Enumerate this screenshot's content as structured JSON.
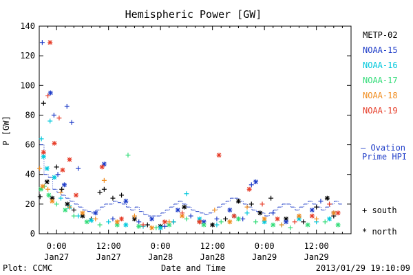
{
  "chart_data": {
    "type": "scatter",
    "title": "Hemispheric Power [GW]",
    "ylabel": "P [GW]",
    "xlabel": "Date and Time",
    "ylim": [
      0,
      140
    ],
    "yticks": [
      0,
      20,
      40,
      60,
      80,
      100,
      120,
      140
    ],
    "xlim_hours": [
      -4,
      68
    ],
    "xticks": [
      {
        "hour": 0,
        "time": "0:00",
        "date": "Jan27"
      },
      {
        "hour": 12,
        "time": "12:00",
        "date": "Jan27"
      },
      {
        "hour": 24,
        "time": "0:00",
        "date": "Jan28"
      },
      {
        "hour": 36,
        "time": "12:00",
        "date": "Jan28"
      },
      {
        "hour": 48,
        "time": "0:00",
        "date": "Jan29"
      },
      {
        "hour": 60,
        "time": "12:00",
        "date": "Jan29"
      }
    ],
    "footer_left": "Plot: CCMC",
    "footer_right": "2013/01/29 19:10:09",
    "legend": {
      "series_colors": [
        "#000000",
        "#1e3cc8",
        "#00c8dc",
        "#32dc78",
        "#f08c1e",
        "#e63c28"
      ],
      "ovation_line1": "— Ovation",
      "ovation_line2": "Prime HPI",
      "ovation_color": "#1e3cc8",
      "south_label": "+ south",
      "north_label": "* north"
    },
    "series": [
      {
        "name": "METP-02",
        "color": "#000000",
        "points": [
          {
            "x": -3.8,
            "y": 25,
            "m": "+"
          },
          {
            "x": -3.0,
            "y": 88,
            "m": "+"
          },
          {
            "x": -2.2,
            "y": 35,
            "m": "*"
          },
          {
            "x": -1.0,
            "y": 24,
            "m": "*"
          },
          {
            "x": 0.0,
            "y": 45,
            "m": "+"
          },
          {
            "x": 1.2,
            "y": 30,
            "m": "+"
          },
          {
            "x": 2.5,
            "y": 20,
            "m": "*"
          },
          {
            "x": 4.0,
            "y": 16,
            "m": "+"
          },
          {
            "x": 6.0,
            "y": 12,
            "m": "*"
          },
          {
            "x": 8.0,
            "y": 10,
            "m": "+"
          },
          {
            "x": 10.0,
            "y": 28,
            "m": "+"
          },
          {
            "x": 11.0,
            "y": 30,
            "m": "+"
          },
          {
            "x": 13.0,
            "y": 24,
            "m": "+"
          },
          {
            "x": 15.0,
            "y": 26,
            "m": "+"
          },
          {
            "x": 18.0,
            "y": 10,
            "m": "*"
          },
          {
            "x": 21.0,
            "y": 6,
            "m": "+"
          },
          {
            "x": 24.0,
            "y": 5,
            "m": "*"
          },
          {
            "x": 27.0,
            "y": 8,
            "m": "+"
          },
          {
            "x": 29.5,
            "y": 18,
            "m": "*"
          },
          {
            "x": 33.0,
            "y": 8,
            "m": "+"
          },
          {
            "x": 36.0,
            "y": 6,
            "m": "*"
          },
          {
            "x": 39.0,
            "y": 10,
            "m": "+"
          },
          {
            "x": 42.0,
            "y": 22,
            "m": "*"
          },
          {
            "x": 45.0,
            "y": 20,
            "m": "+"
          },
          {
            "x": 47.0,
            "y": 14,
            "m": "*"
          },
          {
            "x": 49.5,
            "y": 24,
            "m": "+"
          },
          {
            "x": 53.0,
            "y": 10,
            "m": "*"
          },
          {
            "x": 57.0,
            "y": 8,
            "m": "+"
          },
          {
            "x": 60.0,
            "y": 18,
            "m": "+"
          },
          {
            "x": 62.5,
            "y": 24,
            "m": "*"
          },
          {
            "x": 64.0,
            "y": 12,
            "m": "+"
          }
        ]
      },
      {
        "name": "NOAA-15",
        "color": "#1e3cc8",
        "points": [
          {
            "x": -3.3,
            "y": 129,
            "m": "+"
          },
          {
            "x": -1.4,
            "y": 95,
            "m": "*"
          },
          {
            "x": -0.6,
            "y": 80,
            "m": "+"
          },
          {
            "x": 0.3,
            "y": 40,
            "m": "+"
          },
          {
            "x": 1.8,
            "y": 33,
            "m": "*"
          },
          {
            "x": 2.4,
            "y": 86,
            "m": "+"
          },
          {
            "x": 3.5,
            "y": 75,
            "m": "+"
          },
          {
            "x": 5.0,
            "y": 44,
            "m": "+"
          },
          {
            "x": 9.0,
            "y": 14,
            "m": "*"
          },
          {
            "x": 11.0,
            "y": 47,
            "m": "*"
          },
          {
            "x": 13.0,
            "y": 10,
            "m": "+"
          },
          {
            "x": 16.0,
            "y": 22,
            "m": "*"
          },
          {
            "x": 19.0,
            "y": 8,
            "m": "+"
          },
          {
            "x": 22.0,
            "y": 10,
            "m": "*"
          },
          {
            "x": 25.0,
            "y": 5,
            "m": "+"
          },
          {
            "x": 28.0,
            "y": 16,
            "m": "*"
          },
          {
            "x": 31.0,
            "y": 12,
            "m": "+"
          },
          {
            "x": 34.0,
            "y": 8,
            "m": "*"
          },
          {
            "x": 37.0,
            "y": 10,
            "m": "+"
          },
          {
            "x": 40.0,
            "y": 16,
            "m": "*"
          },
          {
            "x": 43.0,
            "y": 10,
            "m": "+"
          },
          {
            "x": 45.0,
            "y": 33,
            "m": "+"
          },
          {
            "x": 46.0,
            "y": 35,
            "m": "*"
          },
          {
            "x": 50.0,
            "y": 14,
            "m": "+"
          },
          {
            "x": 53.0,
            "y": 8,
            "m": "*"
          },
          {
            "x": 56.0,
            "y": 12,
            "m": "+"
          },
          {
            "x": 59.0,
            "y": 16,
            "m": "*"
          },
          {
            "x": 61.0,
            "y": 22,
            "m": "+"
          },
          {
            "x": 64.0,
            "y": 14,
            "m": "*"
          }
        ]
      },
      {
        "name": "NOAA-16",
        "color": "#00c8dc",
        "points": [
          {
            "x": -3.5,
            "y": 64,
            "m": "+"
          },
          {
            "x": -3.0,
            "y": 52,
            "m": "*"
          },
          {
            "x": -2.2,
            "y": 44,
            "m": "*"
          },
          {
            "x": -1.5,
            "y": 76,
            "m": "+"
          },
          {
            "x": -0.5,
            "y": 38,
            "m": "*"
          },
          {
            "x": 1.0,
            "y": 24,
            "m": "+"
          },
          {
            "x": 3.0,
            "y": 18,
            "m": "*"
          },
          {
            "x": 5.0,
            "y": 12,
            "m": "+"
          },
          {
            "x": 8.0,
            "y": 9,
            "m": "*"
          },
          {
            "x": 12.0,
            "y": 8,
            "m": "+"
          },
          {
            "x": 16.0,
            "y": 6,
            "m": "*"
          },
          {
            "x": 20.0,
            "y": 5,
            "m": "+"
          },
          {
            "x": 24.0,
            "y": 4,
            "m": "*"
          },
          {
            "x": 27.0,
            "y": 8,
            "m": "+"
          },
          {
            "x": 30.0,
            "y": 27,
            "m": "+"
          },
          {
            "x": 33.0,
            "y": 10,
            "m": "*"
          },
          {
            "x": 37.0,
            "y": 6,
            "m": "+"
          },
          {
            "x": 41.0,
            "y": 12,
            "m": "*"
          },
          {
            "x": 44.0,
            "y": 14,
            "m": "+"
          },
          {
            "x": 48.0,
            "y": 8,
            "m": "*"
          },
          {
            "x": 52.0,
            "y": 6,
            "m": "+"
          },
          {
            "x": 56.0,
            "y": 10,
            "m": "*"
          },
          {
            "x": 60.0,
            "y": 8,
            "m": "+"
          },
          {
            "x": 63.0,
            "y": 10,
            "m": "*"
          }
        ]
      },
      {
        "name": "NOAA-17",
        "color": "#32dc78",
        "points": [
          {
            "x": -3.6,
            "y": 30,
            "m": "*"
          },
          {
            "x": -2.8,
            "y": 32,
            "m": "+"
          },
          {
            "x": -1.8,
            "y": 26,
            "m": "*"
          },
          {
            "x": 0.0,
            "y": 20,
            "m": "+"
          },
          {
            "x": 2.0,
            "y": 16,
            "m": "*"
          },
          {
            "x": 4.0,
            "y": 12,
            "m": "+"
          },
          {
            "x": 7.0,
            "y": 8,
            "m": "*"
          },
          {
            "x": 10.0,
            "y": 6,
            "m": "+"
          },
          {
            "x": 14.0,
            "y": 6,
            "m": "*"
          },
          {
            "x": 16.5,
            "y": 53,
            "m": "+"
          },
          {
            "x": 19.0,
            "y": 5,
            "m": "*"
          },
          {
            "x": 23.0,
            "y": 4,
            "m": "+"
          },
          {
            "x": 26.0,
            "y": 6,
            "m": "*"
          },
          {
            "x": 30.0,
            "y": 10,
            "m": "+"
          },
          {
            "x": 34.0,
            "y": 6,
            "m": "*"
          },
          {
            "x": 38.0,
            "y": 8,
            "m": "+"
          },
          {
            "x": 42.0,
            "y": 10,
            "m": "*"
          },
          {
            "x": 46.0,
            "y": 8,
            "m": "+"
          },
          {
            "x": 50.0,
            "y": 6,
            "m": "*"
          },
          {
            "x": 54.0,
            "y": 4,
            "m": "+"
          },
          {
            "x": 58.0,
            "y": 6,
            "m": "*"
          },
          {
            "x": 62.0,
            "y": 8,
            "m": "+"
          },
          {
            "x": 65.0,
            "y": 6,
            "m": "*"
          }
        ]
      },
      {
        "name": "NOAA-18",
        "color": "#f08c1e",
        "points": [
          {
            "x": -3.9,
            "y": 44,
            "m": "+"
          },
          {
            "x": -3.2,
            "y": 32,
            "m": "*"
          },
          {
            "x": -2.0,
            "y": 30,
            "m": "+"
          },
          {
            "x": -1.0,
            "y": 22,
            "m": "*"
          },
          {
            "x": 1.0,
            "y": 28,
            "m": "+"
          },
          {
            "x": 3.0,
            "y": 18,
            "m": "+"
          },
          {
            "x": 6.0,
            "y": 14,
            "m": "*"
          },
          {
            "x": 9.0,
            "y": 10,
            "m": "+"
          },
          {
            "x": 11.0,
            "y": 36,
            "m": "+"
          },
          {
            "x": 14.0,
            "y": 8,
            "m": "*"
          },
          {
            "x": 18.0,
            "y": 12,
            "m": "+"
          },
          {
            "x": 22.0,
            "y": 4,
            "m": "*"
          },
          {
            "x": 26.0,
            "y": 8,
            "m": "+"
          },
          {
            "x": 29.0,
            "y": 12,
            "m": "*"
          },
          {
            "x": 33.0,
            "y": 8,
            "m": "+"
          },
          {
            "x": 36.5,
            "y": 16,
            "m": "+"
          },
          {
            "x": 40.0,
            "y": 8,
            "m": "*"
          },
          {
            "x": 44.0,
            "y": 18,
            "m": "+"
          },
          {
            "x": 48.0,
            "y": 10,
            "m": "*"
          },
          {
            "x": 52.0,
            "y": 6,
            "m": "+"
          },
          {
            "x": 56.0,
            "y": 12,
            "m": "*"
          },
          {
            "x": 60.0,
            "y": 10,
            "m": "+"
          },
          {
            "x": 64.0,
            "y": 14,
            "m": "*"
          }
        ]
      },
      {
        "name": "NOAA-19",
        "color": "#e63c28",
        "points": [
          {
            "x": -3.0,
            "y": 55,
            "m": "*"
          },
          {
            "x": -2.0,
            "y": 93,
            "m": "+"
          },
          {
            "x": -1.5,
            "y": 129,
            "m": "*"
          },
          {
            "x": -0.5,
            "y": 61,
            "m": "*"
          },
          {
            "x": 0.6,
            "y": 78,
            "m": "+"
          },
          {
            "x": 1.4,
            "y": 43,
            "m": "*"
          },
          {
            "x": 3.0,
            "y": 50,
            "m": "*"
          },
          {
            "x": 4.5,
            "y": 26,
            "m": "*"
          },
          {
            "x": 10.5,
            "y": 45,
            "m": "*"
          },
          {
            "x": 15.0,
            "y": 10,
            "m": "*"
          },
          {
            "x": 20.0,
            "y": 6,
            "m": "+"
          },
          {
            "x": 25.0,
            "y": 8,
            "m": "*"
          },
          {
            "x": 29.0,
            "y": 14,
            "m": "+"
          },
          {
            "x": 33.0,
            "y": 8,
            "m": "*"
          },
          {
            "x": 37.5,
            "y": 53,
            "m": "*"
          },
          {
            "x": 41.0,
            "y": 12,
            "m": "*"
          },
          {
            "x": 44.5,
            "y": 30,
            "m": "*"
          },
          {
            "x": 47.5,
            "y": 20,
            "m": "+"
          },
          {
            "x": 51.0,
            "y": 10,
            "m": "*"
          },
          {
            "x": 55.0,
            "y": 8,
            "m": "+"
          },
          {
            "x": 59.0,
            "y": 12,
            "m": "*"
          },
          {
            "x": 63.0,
            "y": 20,
            "m": "+"
          },
          {
            "x": 65.0,
            "y": 14,
            "m": "*"
          }
        ]
      }
    ],
    "ovation_hpi": {
      "name": "Ovation Prime HPI",
      "color": "#1e3cc8",
      "x": [
        -3.5,
        -2.5,
        -1.5,
        -0.5,
        0.5,
        1.5,
        2.5,
        3.5,
        4.5,
        5.5,
        6.5,
        7.5,
        8.5,
        9.5,
        10.5,
        11.5,
        12.5,
        13.5,
        14.5,
        15.5,
        16.5,
        17.5,
        18.5,
        19.5,
        20.5,
        21.5,
        22.5,
        23.5,
        24.5,
        25.5,
        26.5,
        27.5,
        28.5,
        29.5,
        30.5,
        31.5,
        32.5,
        33.5,
        34.5,
        35.5,
        36.5,
        37.5,
        38.5,
        39.5,
        40.5,
        41.5,
        42.5,
        43.5,
        44.5,
        45.5,
        46.5,
        47.5,
        48.5,
        49.5,
        50.5,
        51.5,
        52.5,
        53.5,
        54.5,
        55.5,
        56.5,
        57.5,
        58.5,
        59.5,
        60.5,
        61.5,
        62.5,
        63.5,
        64.5,
        65.5
      ],
      "y": [
        60,
        40,
        38,
        30,
        28,
        26,
        24,
        22,
        20,
        18,
        16,
        15,
        14,
        16,
        18,
        20,
        20,
        22,
        21,
        20,
        18,
        16,
        18,
        15,
        13,
        12,
        12,
        12,
        14,
        16,
        18,
        20,
        22,
        20,
        18,
        16,
        15,
        14,
        13,
        14,
        16,
        18,
        20,
        22,
        24,
        24,
        22,
        20,
        18,
        16,
        15,
        14,
        12,
        14,
        16,
        18,
        20,
        20,
        18,
        16,
        18,
        20,
        22,
        20,
        18,
        16,
        18,
        20,
        22,
        20
      ]
    }
  }
}
